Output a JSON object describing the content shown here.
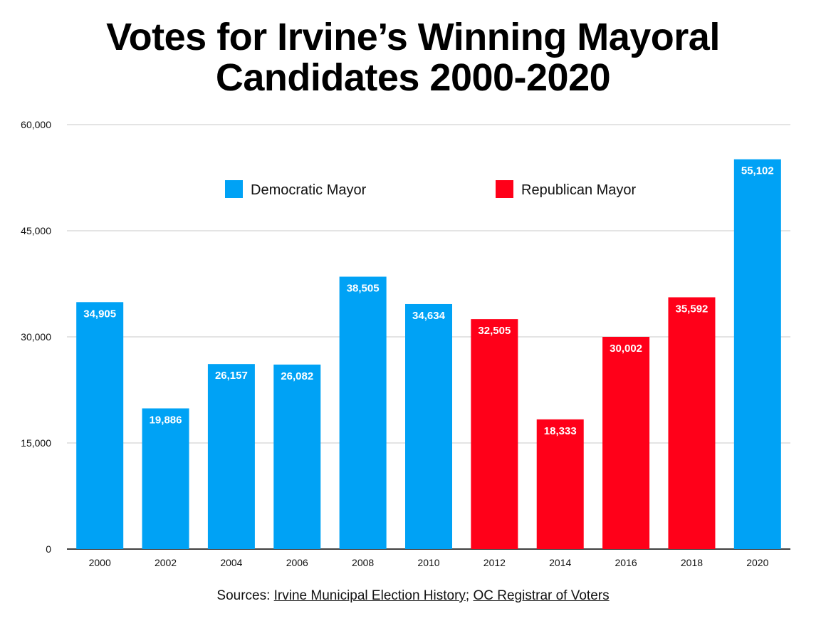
{
  "chart_data": {
    "type": "bar",
    "title": "Votes for Irvine’s Winning Mayoral\nCandidates 2000-2020",
    "categories": [
      "2000",
      "2002",
      "2004",
      "2006",
      "2008",
      "2010",
      "2012",
      "2014",
      "2016",
      "2018",
      "2020"
    ],
    "values": [
      34905,
      19886,
      26157,
      26082,
      38505,
      34634,
      32505,
      18333,
      30002,
      35592,
      55102
    ],
    "value_labels": [
      "34,905",
      "19,886",
      "26,157",
      "26,082",
      "38,505",
      "34,634",
      "32,505",
      "18,333",
      "30,002",
      "35,592",
      "55,102"
    ],
    "party": [
      "Democratic Mayor",
      "Democratic Mayor",
      "Democratic Mayor",
      "Democratic Mayor",
      "Democratic Mayor",
      "Democratic Mayor",
      "Republican Mayor",
      "Republican Mayor",
      "Republican Mayor",
      "Republican Mayor",
      "Democratic Mayor"
    ],
    "legend": [
      {
        "name": "Democratic Mayor",
        "color": "#00a2f5"
      },
      {
        "name": "Republican Mayor",
        "color": "#ff0019"
      }
    ],
    "legend_position": "top",
    "ylim": [
      0,
      60000
    ],
    "yticks": [
      0,
      15000,
      30000,
      45000,
      60000
    ],
    "ytick_labels": [
      "0",
      "15,000",
      "30,000",
      "45,000",
      "60,000"
    ],
    "grid": true,
    "xlabel": "",
    "ylabel": ""
  },
  "sources": {
    "prefix": "Sources: ",
    "link1": "Irvine Municipal Election History",
    "separator": "; ",
    "link2": "OC Registrar of Voters"
  }
}
